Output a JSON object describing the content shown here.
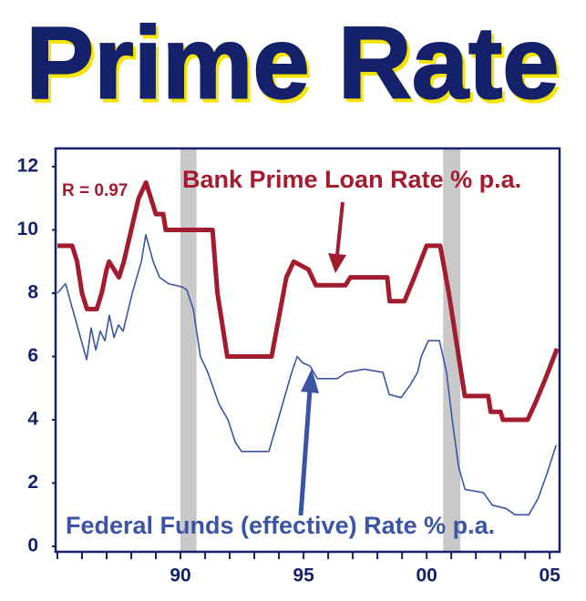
{
  "chart_data": {
    "type": "line",
    "title": "Prime Rate",
    "annotations": {
      "r_value": "R = 0.97"
    },
    "xlim": [
      1985,
      2005.4
    ],
    "ylim": [
      0,
      12
    ],
    "yticks": [
      0,
      2,
      4,
      6,
      8,
      10,
      12
    ],
    "xticks": [
      {
        "value": 1985,
        "label": null
      },
      {
        "value": 1986,
        "label": null
      },
      {
        "value": 1987,
        "label": null
      },
      {
        "value": 1988,
        "label": null
      },
      {
        "value": 1989,
        "label": null
      },
      {
        "value": 1990,
        "label": "90"
      },
      {
        "value": 1991,
        "label": null
      },
      {
        "value": 1992,
        "label": null
      },
      {
        "value": 1993,
        "label": null
      },
      {
        "value": 1994,
        "label": null
      },
      {
        "value": 1995,
        "label": "95"
      },
      {
        "value": 1996,
        "label": null
      },
      {
        "value": 1997,
        "label": null
      },
      {
        "value": 1998,
        "label": null
      },
      {
        "value": 1999,
        "label": null
      },
      {
        "value": 2000,
        "label": "00"
      },
      {
        "value": 2001,
        "label": null
      },
      {
        "value": 2002,
        "label": null
      },
      {
        "value": 2003,
        "label": null
      },
      {
        "value": 2004,
        "label": null
      },
      {
        "value": 2005,
        "label": "05"
      }
    ],
    "shaded_regions": [
      [
        1990.0,
        1990.65
      ],
      [
        2000.67,
        2001.37
      ]
    ],
    "shade_color": "#c8c8c8",
    "series": [
      {
        "name": "Bank Prime Loan Rate % p.a.",
        "color": "#a31b2e",
        "width": 5,
        "x": [
          1985.0,
          1985.6,
          1985.8,
          1986.0,
          1986.2,
          1986.6,
          1986.8,
          1987.0,
          1987.1,
          1987.3,
          1987.5,
          1987.7,
          1988.0,
          1988.3,
          1988.6,
          1988.8,
          1989.0,
          1989.3,
          1989.4,
          1991.3,
          1991.5,
          1991.9,
          1993.7,
          1994.0,
          1994.3,
          1994.6,
          1995.2,
          1995.5,
          1996.7,
          1996.9,
          1998.4,
          1998.5,
          1999.1,
          1999.5,
          2000.0,
          2000.55,
          2000.9,
          2001.2,
          2001.55,
          2002.5,
          2002.6,
          2003.0,
          2003.1,
          2004.1,
          2004.4,
          2004.8,
          2005.3
        ],
        "values": [
          9.5,
          9.5,
          9.0,
          8.0,
          7.5,
          7.5,
          8.0,
          8.75,
          9.0,
          8.75,
          8.5,
          9.0,
          10.0,
          11.0,
          11.5,
          11.0,
          10.5,
          10.5,
          10.0,
          10.0,
          8.0,
          6.0,
          6.0,
          7.25,
          8.5,
          9.0,
          8.75,
          8.25,
          8.25,
          8.5,
          8.5,
          7.75,
          7.75,
          8.5,
          9.5,
          9.5,
          8.0,
          6.5,
          4.75,
          4.75,
          4.25,
          4.25,
          4.0,
          4.0,
          4.5,
          5.25,
          6.25
        ]
      },
      {
        "name": "Federal Funds (effective) Rate % p.a.",
        "color": "#3b54a3",
        "width": 1.6,
        "x": [
          1985.0,
          1985.33,
          1986.19,
          1986.37,
          1986.56,
          1986.74,
          1986.93,
          1987.11,
          1987.3,
          1987.48,
          1987.67,
          1988.04,
          1988.41,
          1988.59,
          1988.89,
          1989.15,
          1989.52,
          1990.07,
          1990.26,
          1990.52,
          1990.81,
          1991.11,
          1991.56,
          1991.93,
          1992.22,
          1992.48,
          1993.59,
          1993.78,
          1994.15,
          1994.52,
          1994.74,
          1994.96,
          1995.26,
          1995.56,
          1996.37,
          1996.74,
          1997.48,
          1998.22,
          1998.48,
          1998.96,
          1999.33,
          1999.63,
          1999.78,
          2000.07,
          2000.52,
          2000.81,
          2001.04,
          2001.3,
          2001.56,
          2002.3,
          2002.67,
          2003.22,
          2003.59,
          2004.15,
          2004.52,
          2004.89,
          2005.26
        ],
        "values": [
          8.0,
          8.3,
          5.9,
          6.9,
          6.2,
          6.8,
          6.5,
          7.3,
          6.6,
          7.0,
          6.8,
          8.0,
          9.0,
          9.85,
          9.0,
          8.5,
          8.3,
          8.2,
          8.1,
          7.5,
          6.0,
          5.5,
          4.5,
          4.0,
          3.3,
          3.0,
          3.0,
          3.5,
          4.5,
          5.5,
          6.0,
          5.8,
          5.7,
          5.3,
          5.3,
          5.5,
          5.6,
          5.5,
          4.8,
          4.7,
          5.1,
          5.5,
          6.0,
          6.5,
          6.5,
          5.5,
          4.0,
          2.5,
          1.8,
          1.7,
          1.3,
          1.2,
          1.0,
          1.0,
          1.5,
          2.3,
          3.2
        ]
      }
    ]
  }
}
